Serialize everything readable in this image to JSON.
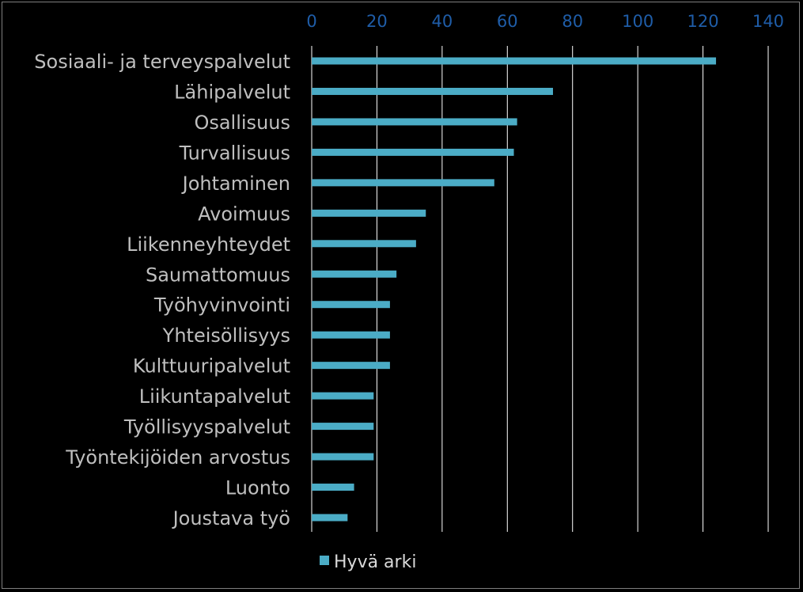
{
  "chart_data": {
    "type": "bar",
    "orientation": "horizontal",
    "categories": [
      "Sosiaali- ja terveyspalvelut",
      "Lähipalvelut",
      "Osallisuus",
      "Turvallisuus",
      "Johtaminen",
      "Avoimuus",
      "Liikenneyhteydet",
      "Saumattomuus",
      "Työhyvinvointi",
      "Yhteisöllisyys",
      "Kulttuuripalvelut",
      "Liikuntapalvelut",
      "Työllisyyspalvelut",
      "Työntekijöiden arvostus",
      "Luonto",
      "Joustava työ"
    ],
    "series": [
      {
        "name": "Hyvä arki",
        "values": [
          124,
          74,
          63,
          62,
          56,
          35,
          32,
          26,
          24,
          24,
          24,
          19,
          19,
          19,
          13,
          11
        ]
      }
    ],
    "xlim": [
      0,
      140
    ],
    "xticks": [
      0,
      20,
      40,
      60,
      80,
      100,
      120,
      140
    ],
    "x_axis_position": "top",
    "grid": true,
    "legend": "bottom",
    "colors": {
      "background": "#000000",
      "bar": "#4bacc6",
      "tick_label": "#1f5da8",
      "category_label": "#bfbfbf",
      "legend_text": "#d9d9d9",
      "gridline": "#ffffff"
    }
  }
}
